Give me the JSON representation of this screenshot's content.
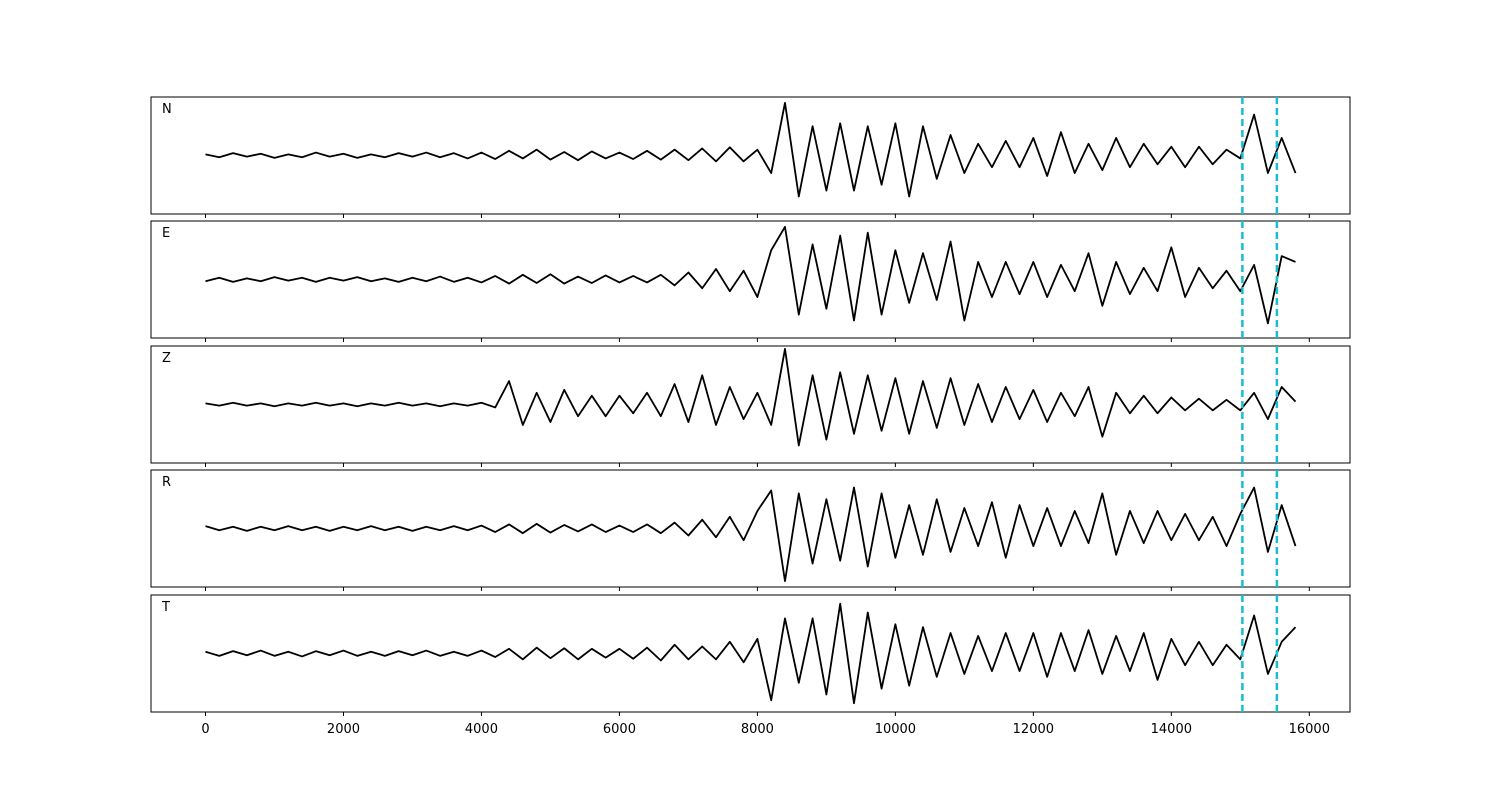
{
  "chart_data": {
    "type": "line",
    "x": [
      0,
      200,
      400,
      600,
      800,
      1000,
      1200,
      1400,
      1600,
      1800,
      2000,
      2200,
      2400,
      2600,
      2800,
      3000,
      3200,
      3400,
      3600,
      3800,
      4000,
      4200,
      4400,
      4600,
      4800,
      5000,
      5200,
      5400,
      5600,
      5800,
      6000,
      6200,
      6400,
      6600,
      6800,
      7000,
      7200,
      7400,
      7600,
      7800,
      8000,
      8200,
      8400,
      8600,
      8800,
      9000,
      9200,
      9400,
      9600,
      9800,
      10000,
      10200,
      10400,
      10600,
      10800,
      11000,
      11200,
      11400,
      11600,
      11800,
      12000,
      12200,
      12400,
      12600,
      12800,
      13000,
      13200,
      13400,
      13600,
      13800,
      14000,
      14200,
      14400,
      14600,
      14800,
      15000,
      15200,
      15400,
      15600,
      15800
    ],
    "xlim": [
      -790,
      16590
    ],
    "xticks": [
      0,
      2000,
      4000,
      6000,
      8000,
      10000,
      12000,
      14000,
      16000
    ],
    "ylim": [
      -1,
      1
    ],
    "vlines": {
      "values": [
        15030,
        15530
      ],
      "color": "#17becf"
    },
    "series": [
      {
        "name": "N",
        "color": "#000000",
        "values": [
          0.02,
          -0.03,
          0.04,
          -0.02,
          0.03,
          -0.04,
          0.02,
          -0.03,
          0.05,
          -0.02,
          0.03,
          -0.04,
          0.02,
          -0.03,
          0.04,
          -0.02,
          0.05,
          -0.03,
          0.04,
          -0.05,
          0.05,
          -0.06,
          0.08,
          -0.05,
          0.1,
          -0.07,
          0.06,
          -0.08,
          0.07,
          -0.05,
          0.05,
          -0.06,
          0.08,
          -0.07,
          0.1,
          -0.08,
          0.12,
          -0.1,
          0.14,
          -0.1,
          0.1,
          -0.3,
          0.9,
          -0.7,
          0.5,
          -0.6,
          0.55,
          -0.6,
          0.5,
          -0.5,
          0.55,
          -0.7,
          0.5,
          -0.4,
          0.35,
          -0.3,
          0.2,
          -0.2,
          0.25,
          -0.2,
          0.3,
          -0.35,
          0.4,
          -0.3,
          0.2,
          -0.25,
          0.3,
          -0.2,
          0.2,
          -0.15,
          0.15,
          -0.2,
          0.15,
          -0.15,
          0.1,
          -0.05,
          0.7,
          -0.3,
          0.3,
          -0.3
        ]
      },
      {
        "name": "E",
        "color": "#000000",
        "values": [
          -0.03,
          0.03,
          -0.04,
          0.02,
          -0.03,
          0.04,
          -0.02,
          0.03,
          -0.04,
          0.03,
          -0.02,
          0.04,
          -0.03,
          0.02,
          -0.04,
          0.03,
          -0.03,
          0.05,
          -0.04,
          0.03,
          -0.05,
          0.06,
          -0.07,
          0.08,
          -0.06,
          0.09,
          -0.07,
          0.05,
          -0.06,
          0.07,
          -0.05,
          0.06,
          -0.05,
          0.08,
          -0.1,
          0.12,
          -0.15,
          0.18,
          -0.2,
          0.15,
          -0.3,
          0.5,
          0.9,
          -0.6,
          0.6,
          -0.5,
          0.75,
          -0.7,
          0.8,
          -0.6,
          0.5,
          -0.4,
          0.45,
          -0.35,
          0.65,
          -0.7,
          0.3,
          -0.3,
          0.3,
          -0.25,
          0.3,
          -0.3,
          0.25,
          -0.2,
          0.45,
          -0.45,
          0.3,
          -0.25,
          0.2,
          -0.2,
          0.55,
          -0.3,
          0.2,
          -0.15,
          0.15,
          -0.2,
          0.25,
          -0.75,
          0.4,
          0.3
        ]
      },
      {
        "name": "Z",
        "color": "#000000",
        "values": [
          0.02,
          -0.02,
          0.03,
          -0.02,
          0.02,
          -0.03,
          0.02,
          -0.02,
          0.03,
          -0.02,
          0.02,
          -0.03,
          0.02,
          -0.02,
          0.03,
          -0.02,
          0.02,
          -0.03,
          0.02,
          -0.02,
          0.03,
          -0.05,
          0.4,
          -0.35,
          0.2,
          -0.3,
          0.25,
          -0.2,
          0.15,
          -0.2,
          0.15,
          -0.15,
          0.2,
          -0.2,
          0.35,
          -0.3,
          0.5,
          -0.35,
          0.3,
          -0.25,
          0.2,
          -0.35,
          0.95,
          -0.7,
          0.5,
          -0.6,
          0.55,
          -0.5,
          0.5,
          -0.45,
          0.45,
          -0.5,
          0.4,
          -0.4,
          0.45,
          -0.35,
          0.35,
          -0.3,
          0.3,
          -0.25,
          0.25,
          -0.3,
          0.2,
          -0.2,
          0.3,
          -0.55,
          0.2,
          -0.15,
          0.15,
          -0.15,
          0.12,
          -0.1,
          0.1,
          -0.1,
          0.08,
          -0.1,
          0.2,
          -0.25,
          0.3,
          0.05
        ]
      },
      {
        "name": "R",
        "color": "#000000",
        "values": [
          0.04,
          -0.03,
          0.03,
          -0.04,
          0.03,
          -0.03,
          0.04,
          -0.03,
          0.03,
          -0.04,
          0.03,
          -0.03,
          0.04,
          -0.03,
          0.03,
          -0.04,
          0.03,
          -0.03,
          0.04,
          -0.03,
          0.05,
          -0.06,
          0.07,
          -0.08,
          0.08,
          -0.07,
          0.06,
          -0.05,
          0.07,
          -0.06,
          0.05,
          -0.06,
          0.07,
          -0.08,
          0.1,
          -0.12,
          0.15,
          -0.15,
          0.2,
          -0.2,
          0.3,
          0.65,
          -0.9,
          0.6,
          -0.6,
          0.5,
          -0.55,
          0.7,
          -0.65,
          0.6,
          -0.5,
          0.4,
          -0.45,
          0.5,
          -0.4,
          0.35,
          -0.3,
          0.45,
          -0.5,
          0.4,
          -0.3,
          0.35,
          -0.3,
          0.3,
          -0.25,
          0.6,
          -0.45,
          0.3,
          -0.25,
          0.3,
          -0.2,
          0.25,
          -0.2,
          0.2,
          -0.3,
          0.25,
          0.7,
          -0.4,
          0.4,
          -0.3
        ]
      },
      {
        "name": "T",
        "color": "#000000",
        "values": [
          0.03,
          -0.04,
          0.04,
          -0.03,
          0.05,
          -0.04,
          0.03,
          -0.05,
          0.04,
          -0.03,
          0.05,
          -0.04,
          0.03,
          -0.04,
          0.04,
          -0.03,
          0.05,
          -0.04,
          0.03,
          -0.04,
          0.05,
          -0.06,
          0.08,
          -0.1,
          0.1,
          -0.08,
          0.09,
          -0.1,
          0.08,
          -0.07,
          0.08,
          -0.09,
          0.1,
          -0.12,
          0.15,
          -0.1,
          0.12,
          -0.1,
          0.2,
          -0.15,
          0.25,
          -0.8,
          0.6,
          -0.5,
          0.6,
          -0.7,
          0.85,
          -0.85,
          0.7,
          -0.6,
          0.5,
          -0.55,
          0.45,
          -0.4,
          0.35,
          -0.35,
          0.3,
          -0.3,
          0.35,
          -0.3,
          0.35,
          -0.4,
          0.35,
          -0.3,
          0.4,
          -0.35,
          0.3,
          -0.3,
          0.35,
          -0.45,
          0.25,
          -0.2,
          0.2,
          -0.2,
          0.15,
          -0.1,
          0.65,
          -0.35,
          0.2,
          0.45
        ]
      }
    ]
  }
}
